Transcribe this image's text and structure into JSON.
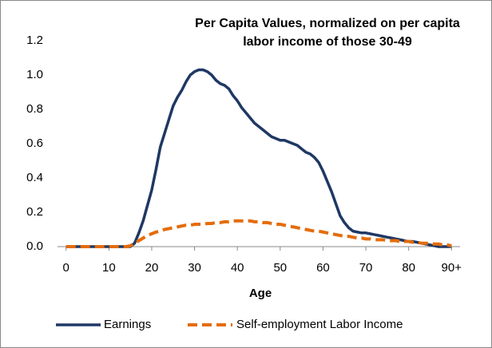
{
  "chart_data": {
    "type": "line",
    "title": "Per Capita Values, normalized on  per capita",
    "subtitle": "labor income of those 30-49",
    "xlabel": "Age",
    "x": [
      0,
      1,
      2,
      3,
      4,
      5,
      6,
      7,
      8,
      9,
      10,
      11,
      12,
      13,
      14,
      15,
      16,
      17,
      18,
      19,
      20,
      21,
      22,
      23,
      24,
      25,
      26,
      27,
      28,
      29,
      30,
      31,
      32,
      33,
      34,
      35,
      36,
      37,
      38,
      39,
      40,
      41,
      42,
      43,
      44,
      45,
      46,
      47,
      48,
      49,
      50,
      51,
      52,
      53,
      54,
      55,
      56,
      57,
      58,
      59,
      60,
      61,
      62,
      63,
      64,
      65,
      66,
      67,
      68,
      69,
      70,
      71,
      72,
      73,
      74,
      75,
      76,
      77,
      78,
      79,
      80,
      81,
      82,
      83,
      84,
      85,
      86,
      87,
      88,
      89,
      90
    ],
    "series": [
      {
        "name": "Earnings",
        "color": "#1f3864",
        "dashed": false,
        "values": [
          0,
          0,
          0,
          0,
          0,
          0,
          0,
          0,
          0,
          0,
          0,
          0,
          0,
          0,
          0,
          0,
          0.02,
          0.08,
          0.15,
          0.24,
          0.33,
          0.45,
          0.58,
          0.66,
          0.74,
          0.82,
          0.87,
          0.91,
          0.96,
          1.0,
          1.02,
          1.03,
          1.03,
          1.02,
          1.0,
          0.97,
          0.95,
          0.94,
          0.92,
          0.88,
          0.85,
          0.81,
          0.78,
          0.75,
          0.72,
          0.7,
          0.68,
          0.66,
          0.64,
          0.63,
          0.62,
          0.62,
          0.61,
          0.6,
          0.59,
          0.57,
          0.55,
          0.54,
          0.52,
          0.49,
          0.44,
          0.38,
          0.32,
          0.25,
          0.18,
          0.14,
          0.11,
          0.09,
          0.085,
          0.08,
          0.08,
          0.075,
          0.07,
          0.065,
          0.06,
          0.055,
          0.05,
          0.045,
          0.04,
          0.035,
          0.03,
          0.03,
          0.025,
          0.02,
          0.015,
          0.01,
          0.005,
          0,
          0,
          0,
          0
        ]
      },
      {
        "name": "Self-employment Labor Income",
        "color": "#e46c0a",
        "dashed": true,
        "values": [
          0,
          0,
          0,
          0,
          0,
          0,
          0,
          0,
          0,
          0,
          0,
          0,
          0,
          0,
          0,
          0.005,
          0.02,
          0.035,
          0.05,
          0.065,
          0.075,
          0.085,
          0.09,
          0.1,
          0.105,
          0.11,
          0.115,
          0.12,
          0.125,
          0.125,
          0.13,
          0.13,
          0.13,
          0.135,
          0.135,
          0.14,
          0.14,
          0.145,
          0.145,
          0.15,
          0.15,
          0.15,
          0.15,
          0.15,
          0.145,
          0.145,
          0.14,
          0.14,
          0.135,
          0.13,
          0.13,
          0.125,
          0.12,
          0.115,
          0.11,
          0.105,
          0.1,
          0.095,
          0.09,
          0.09,
          0.085,
          0.08,
          0.075,
          0.07,
          0.065,
          0.06,
          0.06,
          0.055,
          0.05,
          0.05,
          0.045,
          0.045,
          0.04,
          0.04,
          0.04,
          0.035,
          0.035,
          0.035,
          0.03,
          0.03,
          0.03,
          0.025,
          0.025,
          0.02,
          0.02,
          0.02,
          0.015,
          0.015,
          0.01,
          0.01,
          0.005
        ]
      }
    ],
    "xlim": [
      -2,
      92
    ],
    "xticks": [
      0,
      10,
      20,
      30,
      40,
      50,
      60,
      70,
      80,
      {
        "value": 90,
        "label": "90+"
      }
    ],
    "ylim": [
      0,
      1.2
    ],
    "yticks": [
      {
        "value": 0,
        "label": "0.0"
      },
      0.2,
      0.4,
      0.6,
      0.8,
      {
        "value": 1,
        "label": "1.0"
      },
      1.2
    ],
    "grid": false,
    "legend": "bottom"
  }
}
